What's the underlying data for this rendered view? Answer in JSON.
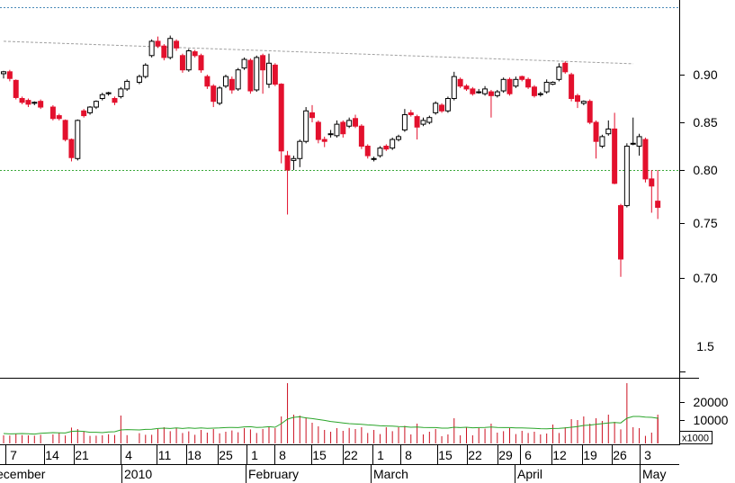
{
  "chart_data": {
    "type": "candlestick",
    "price_axis": {
      "ticks": [
        0.9,
        0.85,
        0.8,
        0.75,
        0.7
      ],
      "tick_labels": [
        "0.90",
        "0.85",
        "0.80",
        "0.75",
        "0.70"
      ],
      "extra_label": "1.5"
    },
    "volume_axis": {
      "ticks": [
        20000,
        10000
      ],
      "tick_labels": [
        "20000",
        "10000"
      ],
      "multiplier_label": "x1000"
    },
    "x_day_labels": [
      "7",
      "14",
      "21",
      "4",
      "11",
      "18",
      "25",
      "1",
      "8",
      "15",
      "22",
      "1",
      "8",
      "15",
      "22",
      "29",
      "6",
      "12",
      "19",
      "26",
      "3"
    ],
    "x_month_labels": [
      "ecember",
      "2010",
      "February",
      "March",
      "April",
      "May"
    ],
    "reference_lines": [
      {
        "style": "dotted",
        "color": "#3aa83a",
        "value": 0.8
      },
      {
        "style": "dotted",
        "color": "#4a8ab8",
        "value": 0.958
      }
    ],
    "trendline": {
      "from": [
        0,
        0.935
      ],
      "to": [
        137,
        0.902
      ]
    },
    "candles": [
      [
        0.901,
        0.903,
        0.904,
        0.896
      ],
      [
        0.903,
        0.896,
        0.905,
        0.893
      ],
      [
        0.894,
        0.876,
        0.895,
        0.874
      ],
      [
        0.875,
        0.871,
        0.877,
        0.869
      ],
      [
        0.873,
        0.869,
        0.875,
        0.866
      ],
      [
        0.87,
        0.871,
        0.872,
        0.868
      ],
      [
        0.872,
        0.866,
        0.874,
        0.864
      ],
      [
        0.866,
        0.854,
        0.868,
        0.852
      ],
      [
        0.857,
        0.854,
        0.859,
        0.852
      ],
      [
        0.852,
        0.832,
        0.853,
        0.83
      ],
      [
        0.832,
        0.813,
        0.833,
        0.809
      ],
      [
        0.812,
        0.852,
        0.853,
        0.81
      ],
      [
        0.862,
        0.857,
        0.864,
        0.855
      ],
      [
        0.86,
        0.866,
        0.867,
        0.858
      ],
      [
        0.866,
        0.872,
        0.873,
        0.864
      ],
      [
        0.875,
        0.879,
        0.881,
        0.873
      ],
      [
        0.88,
        0.881,
        0.882,
        0.878
      ],
      [
        0.875,
        0.871,
        0.877,
        0.868
      ],
      [
        0.877,
        0.885,
        0.887,
        0.875
      ],
      [
        0.885,
        0.893,
        0.895,
        0.883
      ],
      [
        0.892,
        0.898,
        0.9,
        0.89
      ],
      [
        0.898,
        0.91,
        0.912,
        0.896
      ],
      [
        0.92,
        0.935,
        0.937,
        0.918
      ],
      [
        0.935,
        0.93,
        0.94,
        0.928
      ],
      [
        0.93,
        0.918,
        0.932,
        0.915
      ],
      [
        0.918,
        0.938,
        0.941,
        0.916
      ],
      [
        0.935,
        0.928,
        0.937,
        0.925
      ],
      [
        0.92,
        0.905,
        0.922,
        0.902
      ],
      [
        0.905,
        0.925,
        0.927,
        0.903
      ],
      [
        0.924,
        0.92,
        0.926,
        0.918
      ],
      [
        0.92,
        0.905,
        0.922,
        0.902
      ],
      [
        0.898,
        0.888,
        0.9,
        0.885
      ],
      [
        0.888,
        0.872,
        0.89,
        0.866
      ],
      [
        0.87,
        0.886,
        0.888,
        0.868
      ],
      [
        0.888,
        0.898,
        0.9,
        0.886
      ],
      [
        0.895,
        0.884,
        0.898,
        0.88
      ],
      [
        0.885,
        0.905,
        0.907,
        0.883
      ],
      [
        0.907,
        0.916,
        0.918,
        0.905
      ],
      [
        0.915,
        0.883,
        0.917,
        0.88
      ],
      [
        0.884,
        0.918,
        0.92,
        0.882
      ],
      [
        0.92,
        0.905,
        0.922,
        0.88
      ],
      [
        0.89,
        0.912,
        0.922,
        0.886
      ],
      [
        0.91,
        0.89,
        0.912,
        0.888
      ],
      [
        0.89,
        0.82,
        0.891,
        0.807
      ],
      [
        0.815,
        0.8,
        0.82,
        0.75
      ],
      [
        0.81,
        0.812,
        0.815,
        0.8
      ],
      [
        0.812,
        0.83,
        0.832,
        0.803
      ],
      [
        0.83,
        0.862,
        0.866,
        0.828
      ],
      [
        0.86,
        0.855,
        0.868,
        0.85
      ],
      [
        0.85,
        0.832,
        0.852,
        0.828
      ],
      [
        0.832,
        0.83,
        0.835,
        0.824
      ],
      [
        0.838,
        0.838,
        0.842,
        0.834
      ],
      [
        0.836,
        0.848,
        0.852,
        0.834
      ],
      [
        0.85,
        0.838,
        0.852,
        0.834
      ],
      [
        0.846,
        0.852,
        0.855,
        0.844
      ],
      [
        0.854,
        0.846,
        0.858,
        0.844
      ],
      [
        0.846,
        0.825,
        0.848,
        0.822
      ],
      [
        0.825,
        0.815,
        0.827,
        0.812
      ],
      [
        0.812,
        0.812,
        0.814,
        0.809
      ],
      [
        0.815,
        0.823,
        0.825,
        0.813
      ],
      [
        0.825,
        0.822,
        0.827,
        0.82
      ],
      [
        0.823,
        0.832,
        0.834,
        0.821
      ],
      [
        0.832,
        0.835,
        0.837,
        0.83
      ],
      [
        0.842,
        0.858,
        0.864,
        0.84
      ],
      [
        0.86,
        0.858,
        0.863,
        0.856
      ],
      [
        0.856,
        0.845,
        0.858,
        0.832
      ],
      [
        0.848,
        0.852,
        0.855,
        0.846
      ],
      [
        0.85,
        0.855,
        0.857,
        0.848
      ],
      [
        0.86,
        0.87,
        0.872,
        0.858
      ],
      [
        0.868,
        0.862,
        0.87,
        0.86
      ],
      [
        0.862,
        0.875,
        0.877,
        0.86
      ],
      [
        0.875,
        0.898,
        0.903,
        0.873
      ],
      [
        0.895,
        0.888,
        0.897,
        0.886
      ],
      [
        0.888,
        0.885,
        0.89,
        0.883
      ],
      [
        0.885,
        0.88,
        0.887,
        0.878
      ],
      [
        0.882,
        0.882,
        0.885,
        0.88
      ],
      [
        0.88,
        0.885,
        0.888,
        0.878
      ],
      [
        0.882,
        0.878,
        0.884,
        0.855
      ],
      [
        0.878,
        0.882,
        0.884,
        0.876
      ],
      [
        0.883,
        0.895,
        0.897,
        0.881
      ],
      [
        0.895,
        0.88,
        0.897,
        0.878
      ],
      [
        0.888,
        0.895,
        0.898,
        0.886
      ],
      [
        0.898,
        0.895,
        0.899,
        0.893
      ],
      [
        0.895,
        0.887,
        0.897,
        0.885
      ],
      [
        0.887,
        0.878,
        0.889,
        0.876
      ],
      [
        0.88,
        0.88,
        0.882,
        0.877
      ],
      [
        0.882,
        0.892,
        0.895,
        0.88
      ],
      [
        0.89,
        0.892,
        0.893,
        0.889
      ],
      [
        0.895,
        0.908,
        0.912,
        0.893
      ],
      [
        0.912,
        0.903,
        0.914,
        0.901
      ],
      [
        0.9,
        0.875,
        0.902,
        0.872
      ],
      [
        0.878,
        0.872,
        0.88,
        0.865
      ],
      [
        0.87,
        0.872,
        0.873,
        0.868
      ],
      [
        0.872,
        0.85,
        0.874,
        0.848
      ],
      [
        0.85,
        0.83,
        0.852,
        0.812
      ],
      [
        0.825,
        0.835,
        0.837,
        0.823
      ],
      [
        0.838,
        0.843,
        0.852,
        0.836
      ],
      [
        0.843,
        0.785,
        0.86,
        0.784
      ],
      [
        0.76,
        0.7,
        0.762,
        0.68
      ],
      [
        0.76,
        0.825,
        0.828,
        0.758
      ],
      [
        0.828,
        0.828,
        0.855,
        0.826
      ],
      [
        0.825,
        0.835,
        0.838,
        0.815
      ],
      [
        0.832,
        0.79,
        0.834,
        0.786
      ],
      [
        0.79,
        0.782,
        0.8,
        0.752
      ],
      [
        0.765,
        0.758,
        0.8,
        0.745
      ]
    ],
    "candle_days": [
      0,
      1,
      2,
      3,
      4,
      5,
      6,
      8,
      9,
      10,
      11,
      12,
      13,
      14,
      15,
      16,
      17,
      18,
      19,
      20,
      22,
      23,
      24,
      25,
      26,
      27,
      28,
      29,
      30,
      31,
      32,
      33,
      34,
      35,
      36,
      37,
      38,
      39,
      40,
      41,
      42,
      43,
      44,
      45,
      46,
      47,
      48,
      49,
      50,
      51,
      52,
      53,
      54,
      55,
      56,
      57,
      58,
      59,
      60,
      61,
      62,
      63,
      64,
      65,
      66,
      67,
      68,
      69,
      70,
      71,
      72,
      73,
      74,
      75,
      76,
      77,
      78,
      79,
      80,
      81,
      82,
      83,
      84,
      85,
      86,
      87,
      88,
      89,
      90,
      91,
      92,
      93,
      94,
      95,
      96,
      97,
      98,
      99,
      100,
      101,
      102,
      103,
      104,
      105,
      106
    ],
    "volumes": [
      1500,
      1400,
      2200,
      1600,
      1500,
      1300,
      1800,
      2000,
      3000,
      1400,
      5800,
      5000,
      3800,
      1200,
      1300,
      1500,
      2100,
      1700,
      12500,
      1600,
      2700,
      1800,
      1800,
      5000,
      6000,
      3800,
      5500,
      2800,
      3700,
      1800,
      4500,
      3000,
      5000,
      2600,
      3500,
      4200,
      3200,
      5500,
      4800,
      2800,
      5000,
      6500,
      5500,
      12000,
      34000,
      13000,
      12500,
      11500,
      8500,
      6500,
      4500,
      3500,
      5500,
      4000,
      5600,
      5000,
      6000,
      2800,
      4500,
      2200,
      6000,
      3800,
      6000,
      6800,
      2000,
      8000,
      2000,
      3500,
      5000,
      1000,
      2000,
      11000,
      1500,
      6200,
      1500,
      5500,
      5200,
      8000,
      3000,
      3800,
      5500,
      2200,
      4000,
      2800,
      3500,
      2000,
      2500,
      7500,
      2800,
      6000,
      10500,
      10000,
      12000,
      8000,
      11000,
      9500,
      13000,
      9000,
      4800,
      34000,
      6000,
      5500,
      1200,
      3000,
      11500,
      13000,
      11500
    ],
    "ma_volume": [
      2500,
      2300,
      2400,
      2500,
      2400,
      2200,
      2600,
      3000,
      2900,
      2800,
      3700,
      3900,
      3700,
      3200,
      3200,
      3000,
      3400,
      3500,
      4500,
      4700,
      4500,
      4800,
      4900,
      5300,
      5500,
      5300,
      5600,
      5300,
      5600,
      5400,
      5600,
      5400,
      5500,
      5600,
      5800,
      5900,
      5800,
      6200,
      6300,
      5900,
      6000,
      6300,
      6000,
      8000,
      10500,
      11500,
      11800,
      11200,
      10800,
      10300,
      9800,
      9200,
      8800,
      8400,
      8000,
      7800,
      7600,
      7300,
      7100,
      6800,
      6700,
      6600,
      6400,
      6300,
      6000,
      6100,
      5900,
      5800,
      5800,
      5500,
      5500,
      6000,
      5800,
      6000,
      5700,
      5800,
      5900,
      6100,
      5900,
      5800,
      5800,
      5600,
      5600,
      5500,
      5400,
      5200,
      5100,
      5300,
      5400,
      5600,
      6000,
      6400,
      7000,
      7200,
      7600,
      8000,
      8400,
      8600,
      8400,
      11000,
      12000,
      12000,
      11600,
      11500,
      11000,
      11400,
      11000
    ]
  },
  "colors": {
    "up_fill": "#ffffff",
    "up_stroke": "#000000",
    "down_fill": "#e3102d",
    "volume_bar": "#cc1020",
    "ma_line": "#2aa52a",
    "grid_green": "#3aa83a",
    "grid_blue": "#4a8ab8",
    "trendline": "#a0a0a0"
  }
}
